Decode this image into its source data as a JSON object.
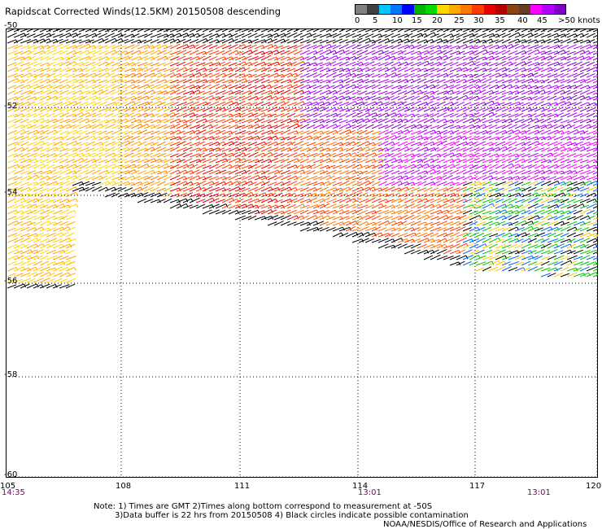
{
  "title": "Rapidscat Corrected Winds(12.5KM) 20150508 descending",
  "legend": {
    "colors": [
      "#808080",
      "#404040",
      "#00c8ff",
      "#0078ff",
      "#0000ff",
      "#00b400",
      "#00dc00",
      "#ffd700",
      "#ffaa00",
      "#ff7800",
      "#ff3c00",
      "#e60000",
      "#b40000",
      "#8b4513",
      "#643c28",
      "#ff00ff",
      "#b400ff",
      "#8000c8"
    ],
    "labels": [
      "0",
      "5",
      "10",
      "15",
      "20",
      "25",
      "30",
      "35",
      "40",
      "45",
      ">50 knots"
    ]
  },
  "map": {
    "lat_ticks": [
      "-50",
      "-52",
      "-54",
      "-56",
      "-58",
      "-60"
    ],
    "lon_ticks": [
      "105",
      "108",
      "111",
      "114",
      "117",
      "120"
    ],
    "lon_range": [
      105,
      120
    ],
    "lat_range": [
      -50,
      -60
    ],
    "grid": "dotted",
    "times": [
      "14:35",
      "13:01",
      "13:01"
    ],
    "data_regions": [
      "swath west (-50 to -56.5)",
      "swath main (-50 to -56)"
    ]
  },
  "notes": {
    "line1": "Note: 1) Times are GMT 2)Times along bottom correspond to measurement at -50S",
    "line2": "3)Data buffer is 22 hrs from 20150508 4) Black circles indicate possible contamination",
    "line3": "NOAA/NESDIS/Office of Research and Applications"
  }
}
